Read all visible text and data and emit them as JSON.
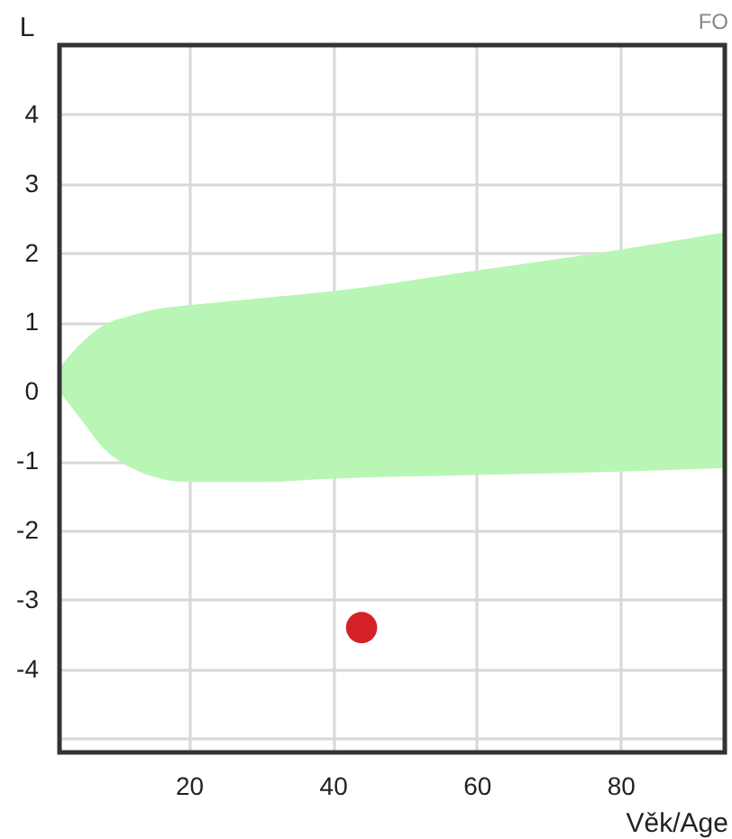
{
  "chart_data": {
    "type": "area",
    "xlabel": "Věk/Age",
    "ylabel": "L",
    "annotations": [
      "FO"
    ],
    "xlim": [
      2,
      94.5
    ],
    "xticks": [
      20,
      40,
      60,
      80
    ],
    "ylim": [
      -5.2,
      5
    ],
    "yticks": [
      {
        "value": -5,
        "label": null
      },
      -4,
      -3,
      -2,
      -1,
      0,
      1,
      2,
      3,
      4
    ],
    "grid": true,
    "series": [
      {
        "color": "#b9f6b5",
        "x": [
          2,
          5,
          8,
          12,
          16,
          20,
          30,
          40,
          60,
          80,
          94.5
        ],
        "values": [
          0.35,
          0.7,
          0.95,
          1.1,
          1.2,
          1.25,
          1.35,
          1.45,
          1.75,
          2.05,
          2.3
        ]
      },
      {
        "color": "#b9f6b5",
        "x": [
          2,
          5,
          8,
          12,
          16,
          20,
          30,
          40,
          60,
          80,
          94.5
        ],
        "values": [
          0,
          -0.4,
          -0.8,
          -1.1,
          -1.25,
          -1.3,
          -1.3,
          -1.25,
          -1.2,
          -1.15,
          -1.1
        ]
      },
      {
        "type": "scatter",
        "color": "#d42027",
        "marker": "circle",
        "x": [
          44
        ],
        "values": [
          -3.4
        ]
      }
    ]
  }
}
